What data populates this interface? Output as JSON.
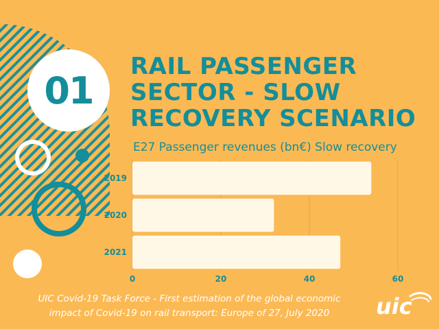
{
  "header": {
    "number": "01",
    "title_lines": [
      "RAIL PASSENGER",
      "SECTOR - SLOW",
      "RECOVERY SCENARIO"
    ]
  },
  "footer": {
    "lines": [
      "UIC Covid-19 Task Force - First estimation of the global economic",
      "impact of Covid-19 on rail transport: Europe of 27, July 2020"
    ],
    "logo_text": "uic"
  },
  "colors": {
    "background": "#FBB954",
    "accent": "#138E9A",
    "bar_fill": "#FFF8E6",
    "white": "#FFFFFF"
  },
  "chart_data": {
    "type": "bar",
    "orientation": "horizontal",
    "title": "E27 Passenger revenues (bn€) Slow recovery",
    "categories": [
      "2019",
      "2020",
      "2021"
    ],
    "values": [
      54,
      32,
      47
    ],
    "xlim": [
      0,
      60
    ],
    "xticks": [
      "0",
      "20",
      "40",
      "60"
    ],
    "grid": true,
    "legend": "none"
  }
}
